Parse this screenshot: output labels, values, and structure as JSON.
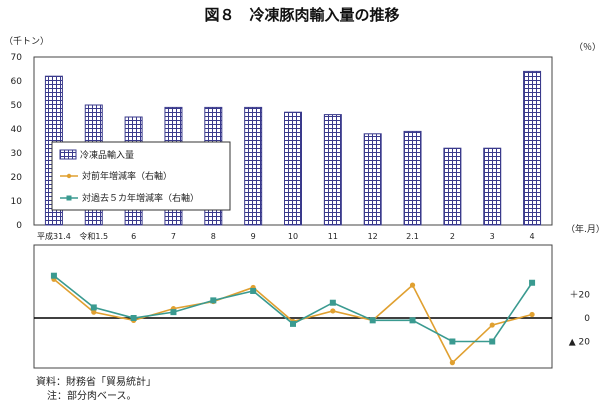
{
  "chart_data": {
    "title": "図８　冷凍豚肉輸入量の推移",
    "type": "bar+line",
    "y_left_unit": "（千トン）",
    "y_right_unit": "（％）",
    "x_unit": "（年.月）",
    "categories": [
      "平成31.4",
      "令和1.5",
      "6",
      "7",
      "8",
      "9",
      "10",
      "11",
      "12",
      "2.1",
      "2",
      "3",
      "4"
    ],
    "ylim_left": [
      0,
      70
    ],
    "yticks_left": [
      "0",
      "10",
      "20",
      "30",
      "40",
      "50",
      "60",
      "70"
    ],
    "yticks_right": [
      "＋20",
      "0",
      "▲ 20"
    ],
    "ylim_right": [
      -40,
      45
    ],
    "series": [
      {
        "name": "冷凍品輸入量",
        "type": "bar",
        "axis": "left",
        "color": "#3a3a8c",
        "values": [
          62,
          50,
          45,
          49,
          49,
          49,
          47,
          46,
          38,
          39,
          32,
          32,
          64
        ]
      },
      {
        "name": "対前年増減率（右軸）",
        "type": "line",
        "axis": "right",
        "color": "#e0a030",
        "values": [
          33,
          5,
          -2,
          8,
          14,
          26,
          -3,
          6,
          -2,
          28,
          -38,
          -6,
          3
        ]
      },
      {
        "name": "対過去５カ年増減率（右軸）",
        "type": "line",
        "axis": "right",
        "color": "#3a9a90",
        "values": [
          36,
          9,
          0,
          5,
          15,
          23,
          -5,
          13,
          -2,
          -2,
          -20,
          -20,
          30
        ]
      }
    ],
    "legend_position": "left-middle",
    "grid": false
  },
  "source_note": "資料：財務省「貿易統計」",
  "footnote": "注：部分肉ベース。"
}
